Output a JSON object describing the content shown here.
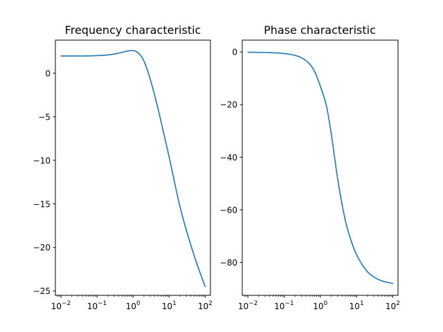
{
  "chart_data": [
    {
      "type": "line",
      "title": "Frequency characteristic",
      "xlabel": "",
      "ylabel": "",
      "xscale": "log",
      "xlim": [
        0.007,
        140
      ],
      "ylim": [
        -25.5,
        3.8
      ],
      "xticks": [
        0.01,
        0.1,
        1,
        10,
        100
      ],
      "xtick_labels": [
        {
          "base": "10",
          "exp": "−2"
        },
        {
          "base": "10",
          "exp": "−1"
        },
        {
          "base": "10",
          "exp": "0"
        },
        {
          "base": "10",
          "exp": "1"
        },
        {
          "base": "10",
          "exp": "2"
        }
      ],
      "yticks": [
        0,
        -5,
        -10,
        -15,
        -20,
        -25
      ],
      "ytick_labels": [
        "0",
        "−5",
        "−10",
        "−15",
        "−20",
        "−25"
      ],
      "grid": false,
      "color": "#1f77b4",
      "series": [
        {
          "x": [
            0.01,
            0.03,
            0.1,
            0.2,
            0.3,
            0.5,
            0.7,
            1.0,
            1.2,
            1.5,
            2.0,
            3.0,
            5.0,
            7.0,
            10,
            20,
            50,
            100
          ],
          "y": [
            1.98,
            1.98,
            2.02,
            2.1,
            2.2,
            2.4,
            2.55,
            2.6,
            2.5,
            2.2,
            1.4,
            -0.7,
            -4.2,
            -6.8,
            -9.6,
            -15.3,
            -21.0,
            -24.5
          ]
        }
      ]
    },
    {
      "type": "line",
      "title": "Phase characteristic",
      "xlabel": "",
      "ylabel": "",
      "xscale": "log",
      "xlim": [
        0.007,
        140
      ],
      "ylim": [
        -92.5,
        4.5
      ],
      "xticks": [
        0.01,
        0.1,
        1,
        10,
        100
      ],
      "xtick_labels": [
        {
          "base": "10",
          "exp": "−2"
        },
        {
          "base": "10",
          "exp": "−1"
        },
        {
          "base": "10",
          "exp": "0"
        },
        {
          "base": "10",
          "exp": "1"
        },
        {
          "base": "10",
          "exp": "2"
        }
      ],
      "yticks": [
        0,
        -20,
        -40,
        -60,
        -80
      ],
      "ytick_labels": [
        "0",
        "−20",
        "−40",
        "−60",
        "−80"
      ],
      "grid": false,
      "color": "#1f77b4",
      "series": [
        {
          "x": [
            0.01,
            0.03,
            0.1,
            0.2,
            0.3,
            0.5,
            0.7,
            1.0,
            1.5,
            2.0,
            3.0,
            4.0,
            5.0,
            7.0,
            10,
            20,
            30,
            50,
            100
          ],
          "y": [
            -0.1,
            -0.2,
            -0.6,
            -1.3,
            -2.2,
            -4.5,
            -7.5,
            -13.0,
            -21.0,
            -31.0,
            -48.0,
            -58.0,
            -64.5,
            -71.5,
            -77.0,
            -83.5,
            -85.5,
            -87.0,
            -88.0
          ]
        }
      ]
    }
  ]
}
